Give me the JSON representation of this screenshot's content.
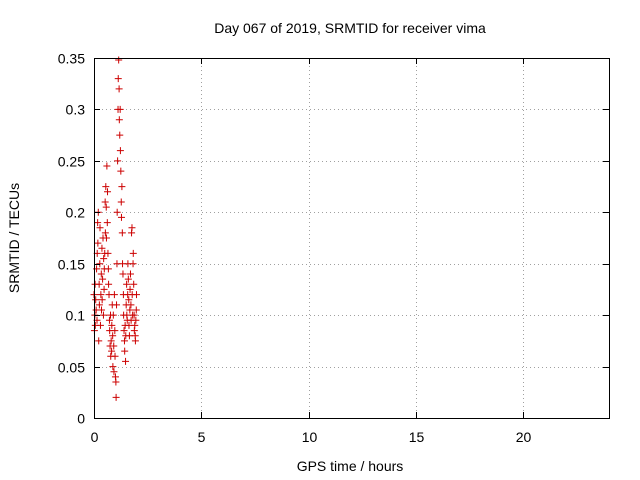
{
  "chart_data": {
    "type": "scatter",
    "title": "Day 067 of 2019, SRMTID for receiver vima",
    "xlabel": "GPS time / hours",
    "ylabel": "SRMTID / TECUs",
    "xlim": [
      0,
      24
    ],
    "ylim": [
      0,
      0.35
    ],
    "xticks": [
      0,
      5,
      10,
      15,
      20
    ],
    "xtick_labels": [
      "0",
      "5",
      "10",
      "15",
      "20"
    ],
    "yticks": [
      0,
      0.05,
      0.1,
      0.15,
      0.2,
      0.25,
      0.3,
      0.35
    ],
    "ytick_labels": [
      "0",
      "0.05",
      "0.1",
      "0.15",
      "0.2",
      "0.25",
      "0.3",
      "0.35"
    ],
    "grid": true,
    "marker": "+",
    "color": "#cc0000",
    "series": [
      {
        "name": "SRMTID",
        "points": [
          [
            0.0,
            0.12
          ],
          [
            0.02,
            0.085
          ],
          [
            0.04,
            0.1
          ],
          [
            0.05,
            0.13
          ],
          [
            0.06,
            0.09
          ],
          [
            0.08,
            0.115
          ],
          [
            0.1,
            0.105
          ],
          [
            0.12,
            0.145
          ],
          [
            0.14,
            0.095
          ],
          [
            0.15,
            0.16
          ],
          [
            0.17,
            0.19
          ],
          [
            0.18,
            0.17
          ],
          [
            0.2,
            0.2
          ],
          [
            0.22,
            0.075
          ],
          [
            0.24,
            0.13
          ],
          [
            0.25,
            0.11
          ],
          [
            0.27,
            0.15
          ],
          [
            0.28,
            0.185
          ],
          [
            0.3,
            0.09
          ],
          [
            0.32,
            0.12
          ],
          [
            0.34,
            0.14
          ],
          [
            0.35,
            0.105
          ],
          [
            0.37,
            0.165
          ],
          [
            0.38,
            0.115
          ],
          [
            0.4,
            0.135
          ],
          [
            0.42,
            0.175
          ],
          [
            0.44,
            0.1
          ],
          [
            0.45,
            0.155
          ],
          [
            0.47,
            0.125
          ],
          [
            0.48,
            0.145
          ],
          [
            0.5,
            0.16
          ],
          [
            0.52,
            0.21
          ],
          [
            0.53,
            0.18
          ],
          [
            0.55,
            0.225
          ],
          [
            0.57,
            0.205
          ],
          [
            0.58,
            0.175
          ],
          [
            0.6,
            0.245
          ],
          [
            0.62,
            0.19
          ],
          [
            0.63,
            0.22
          ],
          [
            0.65,
            0.16
          ],
          [
            0.67,
            0.145
          ],
          [
            0.68,
            0.13
          ],
          [
            0.7,
            0.12
          ],
          [
            0.72,
            0.095
          ],
          [
            0.73,
            0.085
          ],
          [
            0.75,
            0.07
          ],
          [
            0.77,
            0.1
          ],
          [
            0.78,
            0.06
          ],
          [
            0.8,
            0.075
          ],
          [
            0.82,
            0.065
          ],
          [
            0.83,
            0.09
          ],
          [
            0.85,
            0.11
          ],
          [
            0.87,
            0.08
          ],
          [
            0.88,
            0.05
          ],
          [
            0.9,
            0.1
          ],
          [
            0.92,
            0.07
          ],
          [
            0.93,
            0.045
          ],
          [
            0.95,
            0.12
          ],
          [
            0.97,
            0.085
          ],
          [
            0.98,
            0.06
          ],
          [
            1.0,
            0.04
          ],
          [
            1.02,
            0.035
          ],
          [
            1.03,
            0.02
          ],
          [
            1.05,
            0.11
          ],
          [
            1.07,
            0.15
          ],
          [
            1.08,
            0.2
          ],
          [
            1.1,
            0.25
          ],
          [
            1.12,
            0.3
          ],
          [
            1.13,
            0.33
          ],
          [
            1.15,
            0.348
          ],
          [
            1.17,
            0.32
          ],
          [
            1.18,
            0.29
          ],
          [
            1.2,
            0.275
          ],
          [
            1.22,
            0.3
          ],
          [
            1.23,
            0.26
          ],
          [
            1.25,
            0.24
          ],
          [
            1.27,
            0.21
          ],
          [
            1.28,
            0.195
          ],
          [
            1.3,
            0.225
          ],
          [
            1.32,
            0.18
          ],
          [
            1.33,
            0.15
          ],
          [
            1.35,
            0.14
          ],
          [
            1.37,
            0.12
          ],
          [
            1.38,
            0.1
          ],
          [
            1.4,
            0.085
          ],
          [
            1.42,
            0.075
          ],
          [
            1.43,
            0.065
          ],
          [
            1.45,
            0.09
          ],
          [
            1.47,
            0.055
          ],
          [
            1.48,
            0.08
          ],
          [
            1.5,
            0.11
          ],
          [
            1.52,
            0.13
          ],
          [
            1.53,
            0.1
          ],
          [
            1.55,
            0.095
          ],
          [
            1.57,
            0.12
          ],
          [
            1.58,
            0.15
          ],
          [
            1.6,
            0.135
          ],
          [
            1.62,
            0.115
          ],
          [
            1.63,
            0.09
          ],
          [
            1.65,
            0.08
          ],
          [
            1.67,
            0.105
          ],
          [
            1.68,
            0.125
          ],
          [
            1.7,
            0.14
          ],
          [
            1.72,
            0.11
          ],
          [
            1.73,
            0.095
          ],
          [
            1.75,
            0.18
          ],
          [
            1.77,
            0.185
          ],
          [
            1.78,
            0.12
          ],
          [
            1.8,
            0.1
          ],
          [
            1.82,
            0.15
          ],
          [
            1.83,
            0.16
          ],
          [
            1.85,
            0.13
          ],
          [
            1.87,
            0.1
          ],
          [
            1.88,
            0.085
          ],
          [
            1.9,
            0.09
          ],
          [
            1.92,
            0.08
          ],
          [
            1.93,
            0.075
          ],
          [
            1.95,
            0.095
          ],
          [
            1.97,
            0.105
          ],
          [
            1.98,
            0.12
          ]
        ]
      }
    ]
  }
}
